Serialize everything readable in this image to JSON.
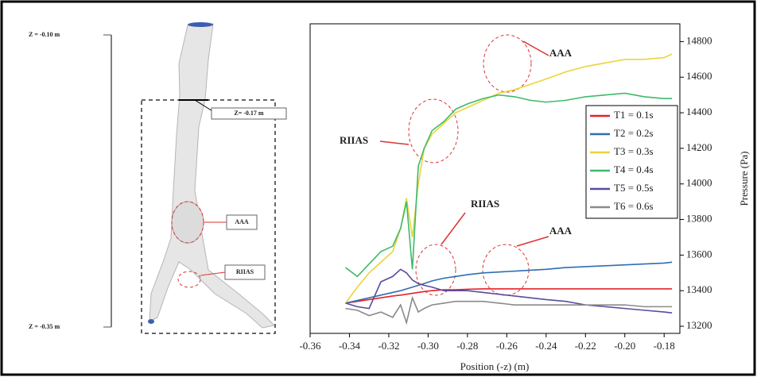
{
  "model_labels": {
    "z_top": "Z = -0.10 m",
    "z_bottom": "Z = -0.35 m",
    "z_mid": "Z= -0.17 m",
    "aaa": "AAA",
    "riias": "RIIAS"
  },
  "chart_data": {
    "type": "line",
    "x_label": "Position  (-z) (m)",
    "y_label": "Pressure (Pa)",
    "x": [
      -0.342,
      -0.336,
      -0.33,
      -0.324,
      -0.318,
      -0.314,
      -0.311,
      -0.308,
      -0.305,
      -0.302,
      -0.298,
      -0.292,
      -0.286,
      -0.28,
      -0.272,
      -0.264,
      -0.256,
      -0.248,
      -0.24,
      -0.23,
      -0.22,
      -0.21,
      -0.2,
      -0.19,
      -0.18,
      -0.176
    ],
    "series": [
      {
        "name": "T1 = 0.1s",
        "color": "#e8202a",
        "values": [
          13330,
          13340,
          13350,
          13360,
          13370,
          13375,
          13380,
          13385,
          13390,
          13395,
          13400,
          13405,
          13405,
          13408,
          13410,
          13410,
          13410,
          13410,
          13410,
          13410,
          13410,
          13410,
          13410,
          13410,
          13410,
          13410
        ]
      },
      {
        "name": "T2 = 0.2s",
        "color": "#2f6db3",
        "values": [
          13330,
          13345,
          13360,
          13375,
          13390,
          13400,
          13410,
          13420,
          13430,
          13440,
          13455,
          13470,
          13480,
          13490,
          13500,
          13505,
          13510,
          13515,
          13520,
          13530,
          13535,
          13540,
          13545,
          13550,
          13555,
          13560
        ]
      },
      {
        "name": "T3 = 0.3s",
        "color": "#ecd43a",
        "values": [
          13330,
          13420,
          13500,
          13560,
          13620,
          13750,
          13920,
          13700,
          14000,
          14200,
          14280,
          14340,
          14400,
          14430,
          14470,
          14510,
          14530,
          14560,
          14590,
          14630,
          14660,
          14680,
          14700,
          14700,
          14710,
          14730
        ]
      },
      {
        "name": "T4 = 0.4s",
        "color": "#3dbb6a",
        "values": [
          13530,
          13480,
          13550,
          13620,
          13650,
          13750,
          13900,
          13520,
          14100,
          14200,
          14300,
          14350,
          14420,
          14450,
          14480,
          14500,
          14490,
          14470,
          14460,
          14470,
          14490,
          14500,
          14510,
          14490,
          14480,
          14480
        ]
      },
      {
        "name": "T5 = 0.5s",
        "color": "#5b4a9e",
        "values": [
          13330,
          13310,
          13300,
          13450,
          13480,
          13520,
          13500,
          13460,
          13440,
          13430,
          13420,
          13400,
          13400,
          13400,
          13390,
          13380,
          13370,
          13360,
          13350,
          13340,
          13320,
          13310,
          13300,
          13290,
          13280,
          13275
        ]
      },
      {
        "name": "T6 = 0.6s",
        "color": "#8a8a8a",
        "values": [
          13300,
          13290,
          13260,
          13280,
          13250,
          13320,
          13220,
          13360,
          13280,
          13300,
          13320,
          13330,
          13340,
          13340,
          13340,
          13330,
          13320,
          13320,
          13320,
          13320,
          13320,
          13320,
          13320,
          13310,
          13310,
          13310
        ]
      }
    ],
    "annotations": [
      "AAA",
      "RIIAS",
      "RIIAS",
      "AAA"
    ],
    "xlim": [
      -0.36,
      -0.172
    ],
    "ylim": [
      13160,
      14900
    ],
    "xticks": [
      -0.36,
      -0.34,
      -0.32,
      {
        "value": -0.3,
        "label": "-0.30"
      },
      -0.28,
      -0.26,
      -0.24,
      -0.22,
      {
        "value": -0.2,
        "label": "-0.20"
      },
      -0.18
    ],
    "yticks": [
      13200,
      13400,
      13600,
      13800,
      14000,
      14200,
      14400,
      14600,
      14800
    ],
    "y_axis_side": "right",
    "legend": "right"
  }
}
